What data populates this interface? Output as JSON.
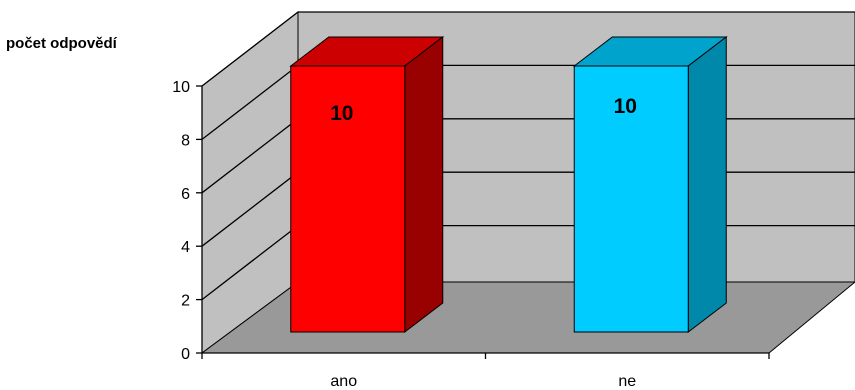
{
  "chart_data": {
    "type": "bar",
    "ylabel": "počet odpovědí",
    "categories": [
      "ano",
      "ne"
    ],
    "values": [
      10,
      10
    ],
    "data_labels": [
      "10",
      "10"
    ],
    "ylim": [
      0,
      10
    ],
    "yticks": [
      "0",
      "2",
      "4",
      "6",
      "8",
      "10"
    ],
    "grid": true,
    "bar_colors": [
      "#ff0000",
      "#00ccff"
    ],
    "bar_top_colors": [
      "#cc0000",
      "#00a3cc"
    ],
    "bar_side_colors": [
      "#990000",
      "#0088aa"
    ],
    "wall_color": "#c0c0c0",
    "floor_color": "#999999"
  }
}
